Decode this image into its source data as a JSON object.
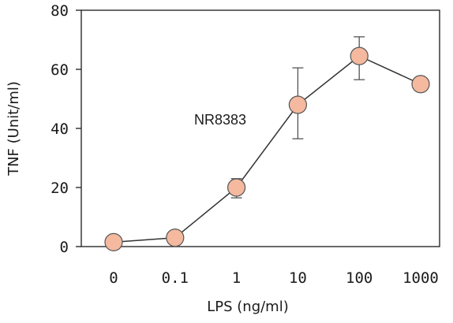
{
  "chart_data": {
    "type": "line",
    "title": "",
    "xlabel": "LPS (ng/ml)",
    "ylabel": "TNF (Unit/ml)",
    "categories": [
      "0",
      "0.1",
      "1",
      "10",
      "100",
      "1000"
    ],
    "y_ticks": [
      "0",
      "20",
      "40",
      "60",
      "80"
    ],
    "ylim": [
      0,
      80
    ],
    "grid": false,
    "legend": "none",
    "annotation": "NR8383",
    "series": [
      {
        "values": [
          1.5,
          3,
          20,
          48,
          64.5,
          55
        ],
        "error_low": [
          null,
          null,
          16.5,
          36.5,
          56.5,
          null
        ],
        "error_high": [
          null,
          null,
          23,
          60.5,
          71,
          null
        ],
        "marker_fill": "#f4b99e",
        "marker_edge": "#555555",
        "line_color": "#333333"
      }
    ]
  }
}
